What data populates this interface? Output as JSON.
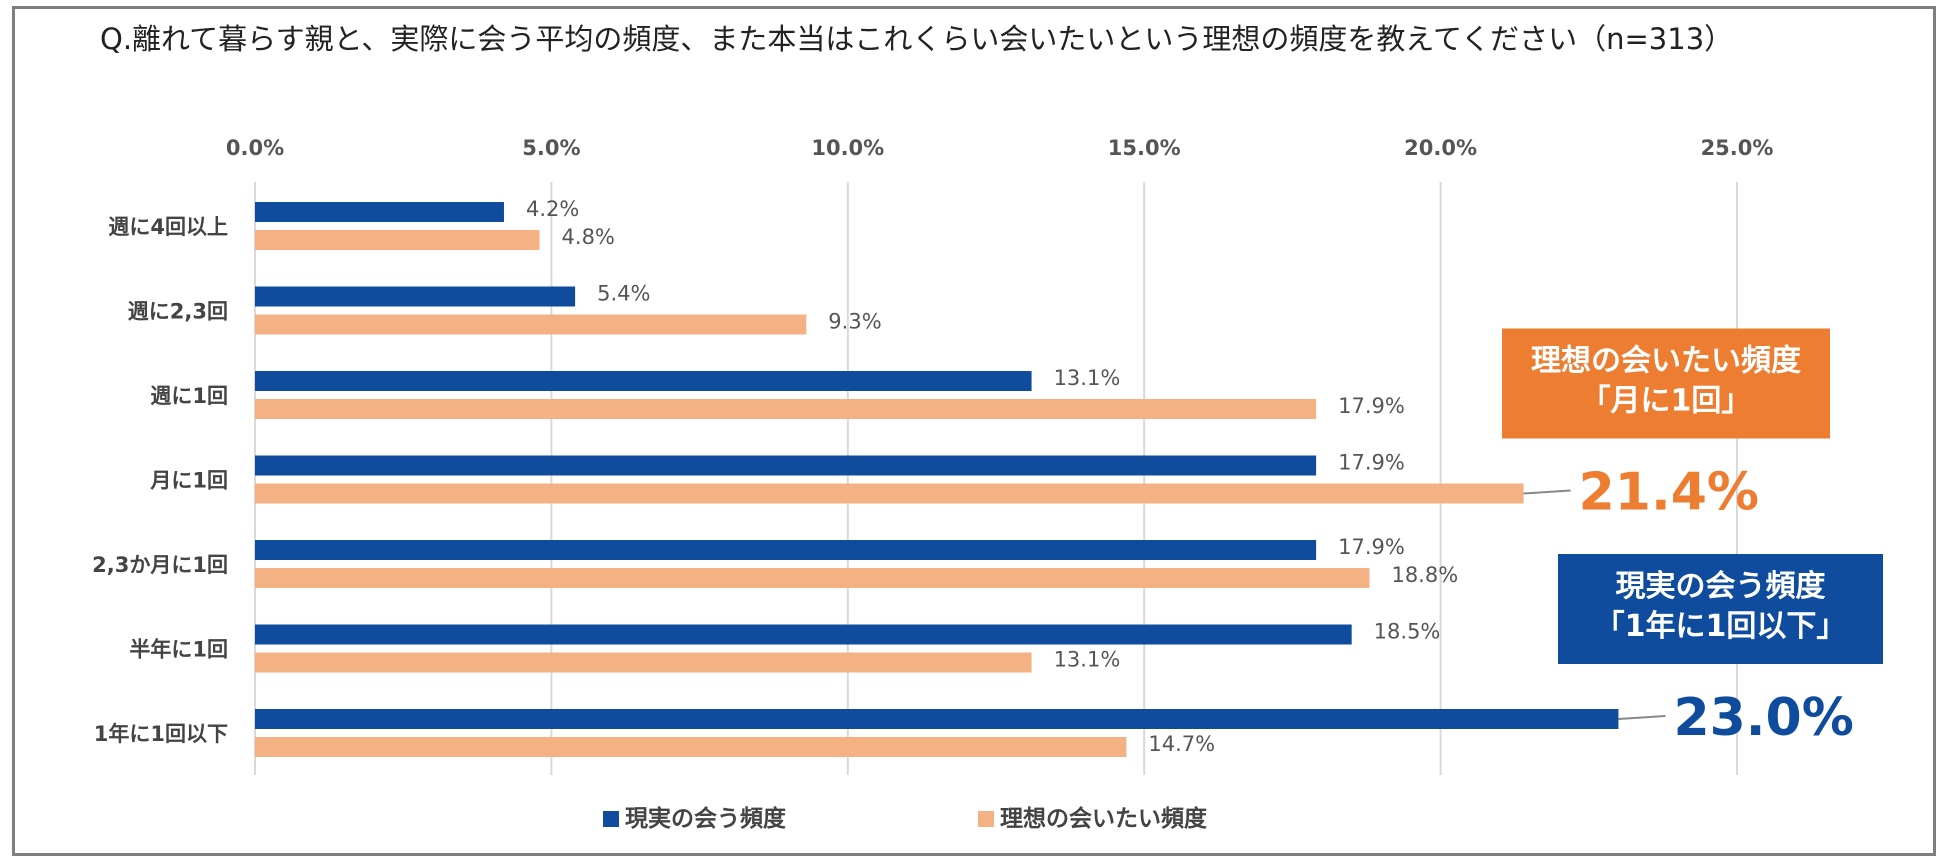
{
  "title": "Q.離れて暮らす親と、実際に会う平均の頻度、また本当はこれくらい会いたいという理想の頻度を教えてください（n=313）",
  "colors": {
    "actual": "#0f4c9e",
    "ideal": "#f4b183",
    "callout_orange": "#ed7d31",
    "callout_blue": "#0f4c9e"
  },
  "chart_data": {
    "type": "bar",
    "orientation": "horizontal",
    "categories": [
      "週に4回以上",
      "週に2,3回",
      "週に1回",
      "月に1回",
      "2,3か月に1回",
      "半年に1回",
      "1年に1回以下"
    ],
    "series": [
      {
        "name": "現実の会う頻度",
        "values": [
          4.2,
          5.4,
          13.1,
          17.9,
          17.9,
          18.5,
          23.0
        ]
      },
      {
        "name": "理想の会いたい頻度",
        "values": [
          4.8,
          9.3,
          17.9,
          21.4,
          18.8,
          13.1,
          14.7
        ]
      }
    ],
    "xlim": [
      0,
      25
    ],
    "xticks": [
      "0.0%",
      "5.0%",
      "10.0%",
      "15.0%",
      "20.0%",
      "25.0%"
    ],
    "value_format": "percent_1dp",
    "grid": "vertical",
    "axis_position": "top",
    "legend_position": "bottom",
    "annotations": [
      {
        "series": 1,
        "category": 3,
        "value_text": "21.4%",
        "box_lines": [
          "理想の会いたい頻度",
          "「月に1回」"
        ]
      },
      {
        "series": 0,
        "category": 6,
        "value_text": "23.0%",
        "box_lines": [
          "現実の会う頻度",
          "「1年に1回以下」"
        ]
      }
    ]
  }
}
